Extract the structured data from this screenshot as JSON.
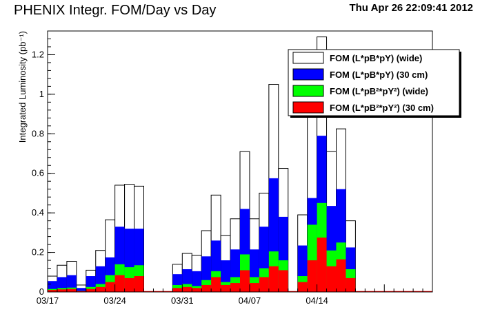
{
  "header": {
    "title": "PHENIX Integr. FOM/Day vs Day",
    "timestamp": "Thu Apr 26 22:09:41 2012"
  },
  "chart_data": {
    "type": "bar",
    "title": "PHENIX Integr. FOM/Day vs Day",
    "xlabel": "",
    "ylabel": "Integrated Luminosity (pb⁻¹)",
    "ylim": [
      0,
      1.32
    ],
    "xlim": [
      0,
      40
    ],
    "x_tick_labels": [
      {
        "label": "03/17",
        "x": 0
      },
      {
        "label": "03/24",
        "x": 7
      },
      {
        "label": "03/31",
        "x": 14
      },
      {
        "label": "04/07",
        "x": 21
      },
      {
        "label": "04/14",
        "x": 28
      }
    ],
    "y_ticks": [
      0,
      0.2,
      0.4,
      0.6,
      0.8,
      1,
      1.2
    ],
    "y_tick_labels": [
      "0",
      "0.2",
      "0.4",
      "0.6",
      "0.8",
      "1",
      "1.2"
    ],
    "legend_position": "top-right",
    "series": [
      {
        "name": "FOM (L*pB*pY) (wide)",
        "color": "#ffffff",
        "values": [
          0.08,
          0.135,
          0.155,
          0.035,
          0.11,
          0.21,
          0.365,
          0.54,
          0.545,
          0.535,
          0,
          0,
          0,
          0.14,
          0.195,
          0.185,
          0.31,
          0.49,
          0.285,
          0.37,
          0.71,
          0.37,
          0.5,
          1.05,
          0.625,
          0,
          0.39,
          0.99,
          1.29,
          0.71,
          0.825,
          0.36,
          0,
          0,
          0,
          0,
          0,
          0,
          0,
          0
        ]
      },
      {
        "name": "FOM (L*pB*pY) (30 cm)",
        "color": "#0000ff",
        "values": [
          0.055,
          0.075,
          0.085,
          0.02,
          0.08,
          0.13,
          0.175,
          0.33,
          0.32,
          0.32,
          0,
          0,
          0,
          0.09,
          0.115,
          0.105,
          0.18,
          0.26,
          0.16,
          0.215,
          0.42,
          0.215,
          0.33,
          0.575,
          0.38,
          0,
          0.235,
          0.475,
          0.79,
          0.435,
          0.52,
          0.225,
          0,
          0,
          0,
          0,
          0,
          0,
          0,
          0
        ]
      },
      {
        "name": "FOM (L*pB²*pY²) (wide)",
        "color": "#00ff00",
        "values": [
          0.015,
          0.02,
          0.022,
          0.005,
          0.025,
          0.04,
          0.085,
          0.14,
          0.125,
          0.135,
          0,
          0,
          0,
          0.035,
          0.04,
          0.03,
          0.06,
          0.105,
          0.05,
          0.075,
          0.19,
          0.075,
          0.12,
          0.205,
          0.16,
          0,
          0.08,
          0.34,
          0.45,
          0.21,
          0.25,
          0.115,
          0,
          0,
          0,
          0,
          0,
          0,
          0,
          0
        ]
      },
      {
        "name": "FOM (L*pB²*pY²) (30 cm)",
        "color": "#ff0000",
        "values": [
          0.01,
          0.013,
          0.015,
          0.003,
          0.015,
          0.025,
          0.05,
          0.085,
          0.07,
          0.08,
          0,
          0,
          0,
          0.02,
          0.025,
          0.02,
          0.035,
          0.075,
          0.035,
          0.045,
          0.11,
          0.045,
          0.075,
          0.13,
          0.11,
          0,
          0.05,
          0.16,
          0.275,
          0.13,
          0.165,
          0.07,
          0,
          0,
          0,
          0,
          0,
          0,
          0,
          0
        ]
      }
    ]
  }
}
